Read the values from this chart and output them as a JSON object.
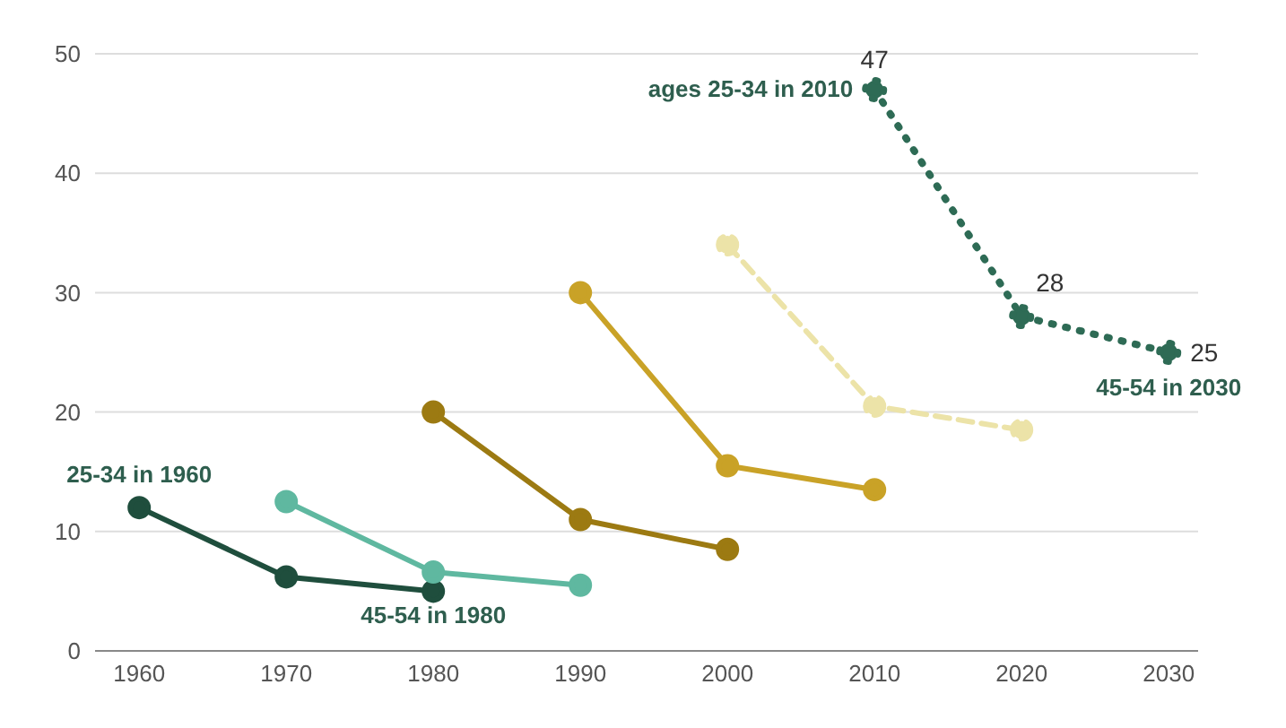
{
  "chart_data": {
    "type": "line",
    "xlim": [
      1957,
      2032
    ],
    "xticks": [
      1960,
      1970,
      1980,
      1990,
      2000,
      2010,
      2020,
      2030
    ],
    "ylim": [
      0,
      50
    ],
    "yticks": [
      0,
      10,
      20,
      30,
      40,
      50
    ],
    "grid": "y",
    "marker": "circle",
    "series": [
      {
        "color": "#1f4e3d",
        "x": [
          1960,
          1970,
          1980
        ],
        "values": [
          12,
          6.2,
          5
        ]
      },
      {
        "color": "#5fb8a0",
        "x": [
          1970,
          1980,
          1990
        ],
        "values": [
          12.5,
          6.6,
          5.5
        ]
      },
      {
        "color": "#9c7a12",
        "x": [
          1980,
          1990,
          2000
        ],
        "values": [
          20,
          11,
          8.5
        ]
      },
      {
        "color": "#c9a227",
        "x": [
          1990,
          2000,
          2010
        ],
        "values": [
          30,
          15.5,
          13.5
        ]
      },
      {
        "color": "#ece3a8",
        "x": [
          2000,
          2010,
          2020
        ],
        "values": [
          34,
          20.5,
          18.5
        ],
        "line_style": "dashed"
      },
      {
        "color": "#2e6b55",
        "x": [
          2010,
          2020,
          2030
        ],
        "values": [
          47,
          28,
          25
        ],
        "line_style": "dotted",
        "value_labels": [
          "47",
          "28",
          "25"
        ]
      }
    ],
    "annotations": [
      {
        "text": "25-34 in 1960",
        "x": 1960,
        "y": 12
      },
      {
        "text": "45-54 in 1980",
        "x": 1980,
        "y": 5
      },
      {
        "text": "ages 25-34 in 2010",
        "x": 2010,
        "y": 47
      },
      {
        "text": "45-54 in 2030",
        "x": 2030,
        "y": 25
      }
    ]
  }
}
